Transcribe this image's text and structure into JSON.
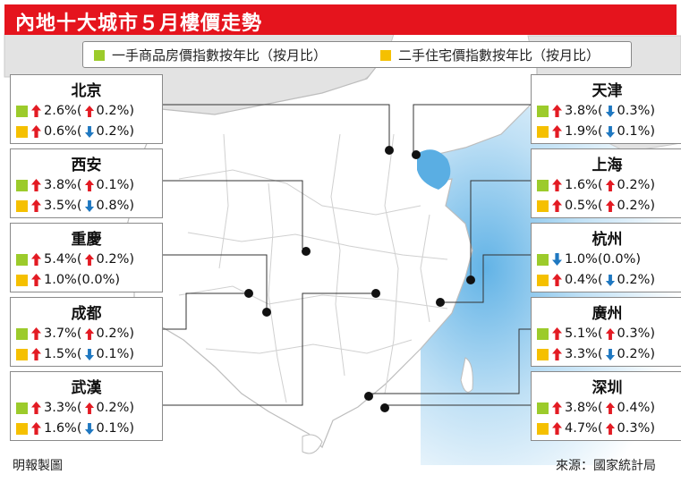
{
  "title": "內地十大城市５月樓價走勢",
  "legend": [
    {
      "label": "一手商品房價指數按年比（按月比）",
      "color": "#9ccb2b"
    },
    {
      "label": "二手住宅價指數按年比（按月比）",
      "color": "#f5c000"
    }
  ],
  "colors": {
    "up": "#e31b23",
    "down": "#1f78c1",
    "new_home": "#9ccb2b",
    "resale": "#f5c000",
    "title_bg": "#e5141d"
  },
  "cities": [
    {
      "name": "北京",
      "rows": [
        {
          "yoy_dir": "up",
          "yoy": "2.6%",
          "mom_dir": "up",
          "mom": "0.2%"
        },
        {
          "yoy_dir": "up",
          "yoy": "0.6%",
          "mom_dir": "down",
          "mom": "0.2%"
        }
      ]
    },
    {
      "name": "西安",
      "rows": [
        {
          "yoy_dir": "up",
          "yoy": "3.8%",
          "mom_dir": "up",
          "mom": "0.1%"
        },
        {
          "yoy_dir": "up",
          "yoy": "3.5%",
          "mom_dir": "down",
          "mom": "0.8%"
        }
      ]
    },
    {
      "name": "重慶",
      "rows": [
        {
          "yoy_dir": "up",
          "yoy": "5.4%",
          "mom_dir": "up",
          "mom": "0.2%"
        },
        {
          "yoy_dir": "up",
          "yoy": "1.0%",
          "mom_dir": "none",
          "mom": "0.0%"
        }
      ]
    },
    {
      "name": "成都",
      "rows": [
        {
          "yoy_dir": "up",
          "yoy": "3.7%",
          "mom_dir": "up",
          "mom": "0.2%"
        },
        {
          "yoy_dir": "up",
          "yoy": "1.5%",
          "mom_dir": "down",
          "mom": "0.1%"
        }
      ]
    },
    {
      "name": "武漢",
      "rows": [
        {
          "yoy_dir": "up",
          "yoy": "3.3%",
          "mom_dir": "up",
          "mom": "0.2%"
        },
        {
          "yoy_dir": "up",
          "yoy": "1.6%",
          "mom_dir": "down",
          "mom": "0.1%"
        }
      ]
    },
    {
      "name": "天津",
      "rows": [
        {
          "yoy_dir": "up",
          "yoy": "3.8%",
          "mom_dir": "down",
          "mom": "0.3%"
        },
        {
          "yoy_dir": "up",
          "yoy": "1.9%",
          "mom_dir": "down",
          "mom": "0.1%"
        }
      ]
    },
    {
      "name": "上海",
      "rows": [
        {
          "yoy_dir": "up",
          "yoy": "1.6%",
          "mom_dir": "up",
          "mom": "0.2%"
        },
        {
          "yoy_dir": "up",
          "yoy": "0.5%",
          "mom_dir": "up",
          "mom": "0.2%"
        }
      ]
    },
    {
      "name": "杭州",
      "rows": [
        {
          "yoy_dir": "down",
          "yoy": "1.0%",
          "mom_dir": "none",
          "mom": "0.0%"
        },
        {
          "yoy_dir": "up",
          "yoy": "0.4%",
          "mom_dir": "down",
          "mom": "0.2%"
        }
      ]
    },
    {
      "name": "廣州",
      "rows": [
        {
          "yoy_dir": "up",
          "yoy": "5.1%",
          "mom_dir": "up",
          "mom": "0.3%"
        },
        {
          "yoy_dir": "up",
          "yoy": "3.3%",
          "mom_dir": "down",
          "mom": "0.2%"
        }
      ]
    },
    {
      "name": "深圳",
      "rows": [
        {
          "yoy_dir": "up",
          "yoy": "3.8%",
          "mom_dir": "up",
          "mom": "0.4%"
        },
        {
          "yoy_dir": "up",
          "yoy": "4.7%",
          "mom_dir": "up",
          "mom": "0.3%"
        }
      ]
    }
  ],
  "credit": "明報製圖",
  "source": "來源：國家統計局"
}
